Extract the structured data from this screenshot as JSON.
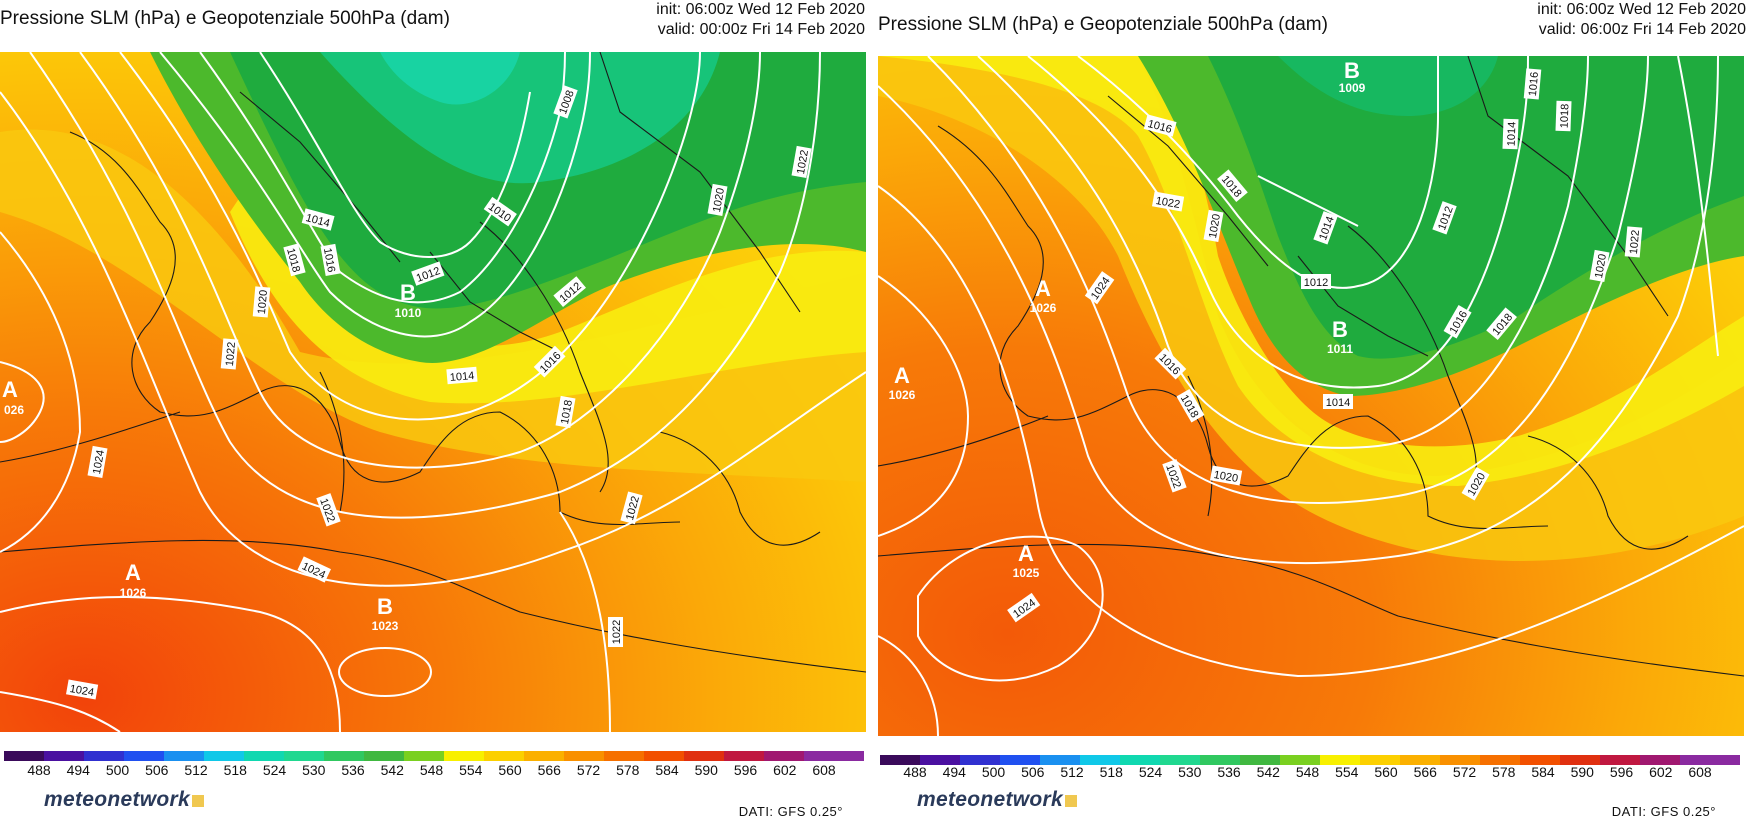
{
  "panels": [
    {
      "title": "Pressione SLM (hPa) e Geopotenziale 500hPa (dam)",
      "init": "init: 06:00z Wed 12 Feb 2020",
      "valid": "valid: 00:00z Fri 14 Feb 2020",
      "centers": [
        {
          "type": "A",
          "value": "026"
        },
        {
          "type": "B",
          "value": "1010"
        },
        {
          "type": "A",
          "value": "1026"
        },
        {
          "type": "B",
          "value": "1023"
        }
      ],
      "isobar_labels": [
        "1008",
        "1010",
        "1012",
        "1012",
        "1014",
        "1014",
        "1016",
        "1016",
        "1018",
        "1018",
        "1020",
        "1020",
        "1022",
        "1022",
        "1022",
        "1022",
        "1024",
        "1024",
        "1024",
        "1022"
      ],
      "logo": "meteonetwork",
      "credit": "DATI: GFS 0.25°"
    },
    {
      "title": "Pressione SLM (hPa) e Geopotenziale 500hPa (dam)",
      "init": "init: 06:00z Wed 12 Feb 2020",
      "valid": "valid: 06:00z Fri 14 Feb 2020",
      "centers": [
        {
          "type": "B",
          "value": "1009"
        },
        {
          "type": "A",
          "value": "1026"
        },
        {
          "type": "A",
          "value": "1026"
        },
        {
          "type": "B",
          "value": "1011"
        },
        {
          "type": "A",
          "value": "1025"
        }
      ],
      "isobar_labels": [
        "1016",
        "1016",
        "1014",
        "1018",
        "1018",
        "1012",
        "1014",
        "1022",
        "1020",
        "1024",
        "1012",
        "1022",
        "1020",
        "1016",
        "1018",
        "1016",
        "1018",
        "1014",
        "1022",
        "1020",
        "1020",
        "1024"
      ],
      "logo": "meteonetwork",
      "credit": "DATI: GFS 0.25°"
    }
  ],
  "colorbar": {
    "ticks": [
      "488",
      "494",
      "500",
      "506",
      "512",
      "518",
      "524",
      "530",
      "536",
      "542",
      "548",
      "554",
      "560",
      "566",
      "572",
      "578",
      "584",
      "590",
      "596",
      "602",
      "608"
    ],
    "colors": [
      "#3a0a5a",
      "#4a10a0",
      "#3030d0",
      "#2050f0",
      "#1a90f0",
      "#10c8e8",
      "#10d8b0",
      "#20d890",
      "#30c860",
      "#40b840",
      "#7ad020",
      "#f8f000",
      "#fcd000",
      "#fbb000",
      "#f99000",
      "#f67000",
      "#f25000",
      "#e03010",
      "#c01840",
      "#a01870",
      "#8a2aa0"
    ]
  }
}
